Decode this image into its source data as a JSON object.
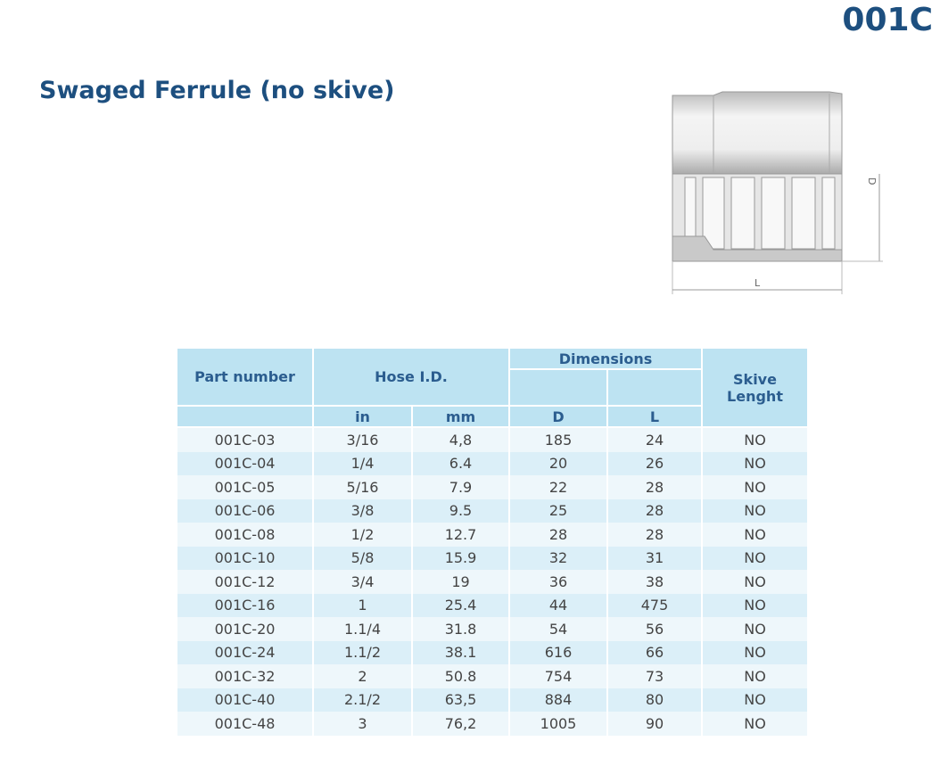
{
  "header": {
    "code": "001C",
    "title": "Swaged Ferrule (no skive)"
  },
  "drawing": {
    "dimension_d": "D",
    "dimension_l": "L"
  },
  "table": {
    "headers": {
      "part_number": "Part number",
      "hose_id": "Hose I.D.",
      "dimensions": "Dimensions",
      "skive_length": "Skive Lenght",
      "in": "in",
      "mm": "mm",
      "d": "D",
      "l": "L"
    },
    "rows": [
      [
        "001C-03",
        "3/16",
        "4,8",
        "185",
        "24",
        "NO"
      ],
      [
        "001C-04",
        "1/4",
        "6.4",
        "20",
        "26",
        "NO"
      ],
      [
        "001C-05",
        "5/16",
        "7.9",
        "22",
        "28",
        "NO"
      ],
      [
        "001C-06",
        "3/8",
        "9.5",
        "25",
        "28",
        "NO"
      ],
      [
        "001C-08",
        "1/2",
        "12.7",
        "28",
        "28",
        "NO"
      ],
      [
        "001C-10",
        "5/8",
        "15.9",
        "32",
        "31",
        "NO"
      ],
      [
        "001C-12",
        "3/4",
        "19",
        "36",
        "38",
        "NO"
      ],
      [
        "001C-16",
        "1",
        "25.4",
        "44",
        "475",
        "NO"
      ],
      [
        "001C-20",
        "1.1/4",
        "31.8",
        "54",
        "56",
        "NO"
      ],
      [
        "001C-24",
        "1.1/2",
        "38.1",
        "616",
        "66",
        "NO"
      ],
      [
        "001C-32",
        "2",
        "50.8",
        "754",
        "73",
        "NO"
      ],
      [
        "001C-40",
        "2.1/2",
        "63,5",
        "884",
        "80",
        "NO"
      ],
      [
        "001C-48",
        "3",
        "76,2",
        "1005",
        "90",
        "NO"
      ]
    ]
  }
}
